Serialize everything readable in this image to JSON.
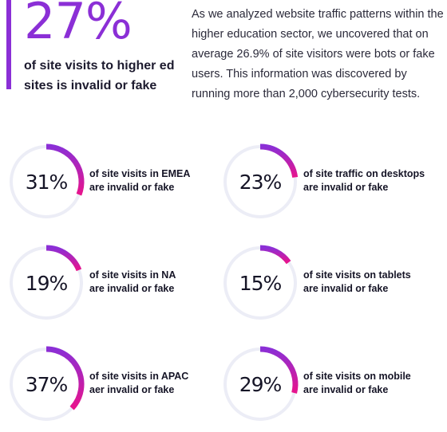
{
  "header": {
    "big_stat": "27%",
    "caption": "of site visits to higher ed sites is invalid or fake",
    "intro": "As we analyzed website traffic patterns within the higher education sector, we uncovered that on average 26.9% of site visitors were bots or fake users. This information was discovered by running more than 2,000 cybersecurity tests."
  },
  "colors": {
    "accent_purple": "#8b2fd6",
    "accent_pink": "#e8148c",
    "ring_track": "#ecedf6"
  },
  "stats": [
    {
      "value": 31,
      "label": "31%",
      "line1": "of site visits in EMEA",
      "line2": "are invalid or fake"
    },
    {
      "value": 23,
      "label": "23%",
      "line1": "of site traffic on desktops",
      "line2": "are invalid or fake"
    },
    {
      "value": 19,
      "label": "19%",
      "line1": "of site visits in NA",
      "line2": "are invalid or fake"
    },
    {
      "value": 15,
      "label": "15%",
      "line1": "of site visits on tablets",
      "line2": "are invalid or fake"
    },
    {
      "value": 37,
      "label": "37%",
      "line1": "of site visits in APAC",
      "line2": "aer invalid or fake"
    },
    {
      "value": 29,
      "label": "29%",
      "line1": "of site visits on mobile",
      "line2": "are invalid or fake"
    }
  ]
}
